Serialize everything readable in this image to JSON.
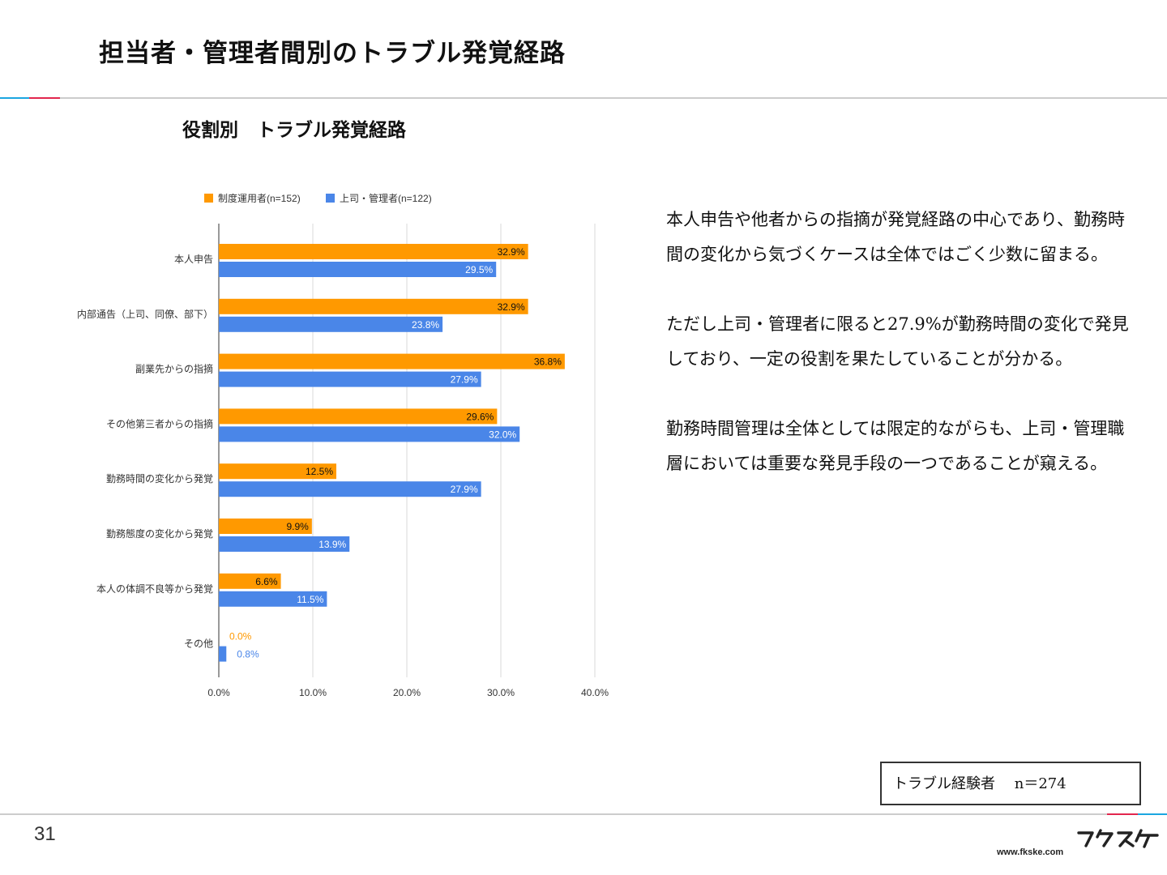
{
  "page": {
    "title": "担当者・管理者間別のトラブル発覚経路",
    "chart_heading": "役割別　トラブル発覚経路",
    "page_number": "31",
    "sample_label": "トラブル経験者　 n＝274",
    "url": "www.fkske.com",
    "logo_name": "fukuske-logo",
    "accent_colors": {
      "cyan": "#1ba6e0",
      "red": "#e2264e",
      "rule_gray": "#cccccc"
    }
  },
  "summary": {
    "p1": "本人申告や他者からの指摘が発覚経路の中心であり、勤務時間の変化から気づくケースは全体ではごく少数に留まる。",
    "p2": "ただし上司・管理者に限ると27.9%が勤務時間の変化で発見しており、一定の役割を果たしていることが分かる。",
    "p3": "勤務時間管理は全体としては限定的ながらも、上司・管理職層においては重要な発見手段の一つであることが窺える。"
  },
  "chart_data": {
    "type": "bar",
    "orientation": "horizontal",
    "categories": [
      "本人申告",
      "内部通告（上司、同僚、部下）",
      "副業先からの指摘",
      "その他第三者からの指摘",
      "勤務時間の変化から発覚",
      "勤務態度の変化から発覚",
      "本人の体調不良等から発覚",
      "その他"
    ],
    "series": [
      {
        "name": "制度運用者(n=152)",
        "color": "#ff9900",
        "values": [
          32.9,
          32.9,
          36.8,
          29.6,
          12.5,
          9.9,
          6.6,
          0.0
        ],
        "labels": [
          "32.9%",
          "32.9%",
          "36.8%",
          "29.6%",
          "12.5%",
          "9.9%",
          "6.6%",
          "0.0%"
        ]
      },
      {
        "name": "上司・管理者(n=122)",
        "color": "#4a86e8",
        "values": [
          29.5,
          23.8,
          27.9,
          32.0,
          27.9,
          13.9,
          11.5,
          0.8
        ],
        "labels": [
          "29.5%",
          "23.8%",
          "27.9%",
          "32.0%",
          "27.9%",
          "13.9%",
          "11.5%",
          "0.8%"
        ]
      }
    ],
    "xlim": [
      0,
      40
    ],
    "xticks": [
      "0.0%",
      "10.0%",
      "20.0%",
      "30.0%",
      "40.0%"
    ],
    "xtick_values": [
      0,
      10,
      20,
      30,
      40
    ],
    "grid": true,
    "legend": "top"
  }
}
